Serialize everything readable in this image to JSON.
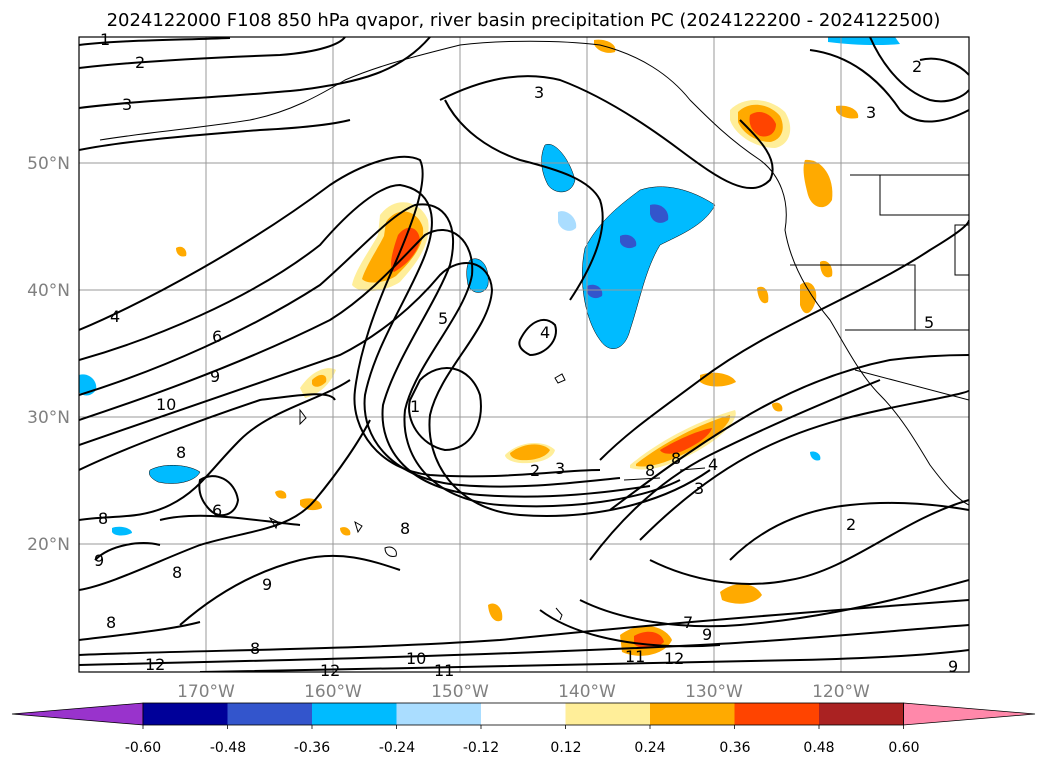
{
  "title": "2024122000 F108 850 hPa qvapor, river basin precipitation PC (2024122200 - 2024122500)",
  "lat_labels": [
    "50°N",
    "40°N",
    "30°N",
    "20°N"
  ],
  "lon_labels": [
    "170°W",
    "160°W",
    "150°W",
    "140°W",
    "130°W",
    "120°W"
  ],
  "contour_labels": [
    "1",
    "2",
    "3",
    "3",
    "4",
    "6",
    "9",
    "10",
    "8",
    "6",
    "8",
    "8",
    "9",
    "8",
    "9",
    "8",
    "1",
    "5",
    "4",
    "2",
    "3",
    "8",
    "8",
    "4",
    "3",
    "2",
    "7",
    "9",
    "10",
    "11",
    "12",
    "12",
    "12",
    "11",
    "3",
    "5",
    "2",
    "9",
    "8"
  ],
  "colorbar": {
    "colors": [
      "#9933cc",
      "#000099",
      "#3355cc",
      "#00bbff",
      "#aaddff",
      "#ffffff",
      "#ffee99",
      "#ffaa00",
      "#ff4400",
      "#aa2222",
      "#ff88aa"
    ],
    "tick_labels": [
      "-0.60",
      "-0.48",
      "-0.36",
      "-0.24",
      "-0.12",
      "0.12",
      "0.24",
      "0.36",
      "0.48",
      "0.60"
    ]
  },
  "colors": {
    "contour": "#000000",
    "grid": "#999999",
    "tick_text": "#808080"
  }
}
